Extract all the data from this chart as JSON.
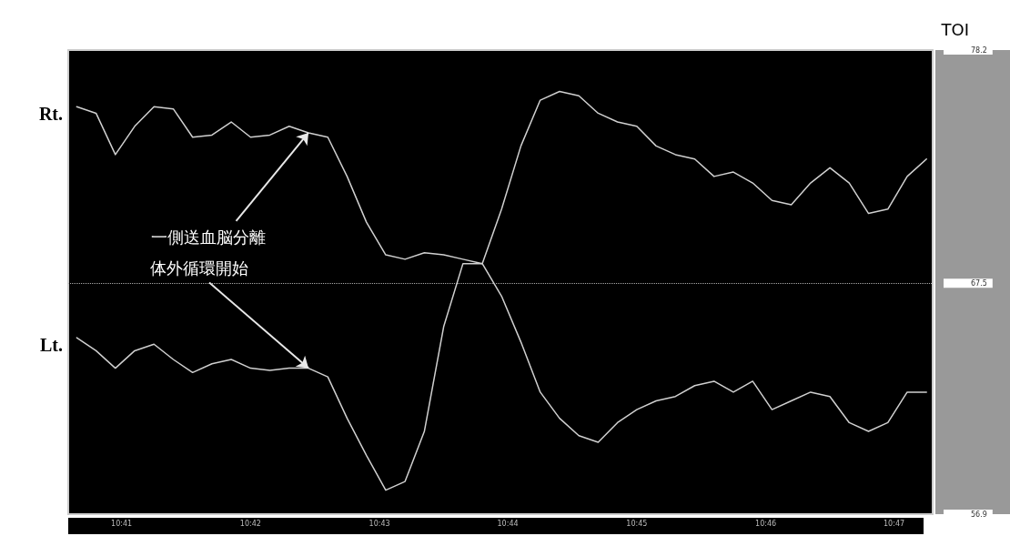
{
  "chart_data": {
    "type": "line",
    "title": "TOI",
    "x": [
      10.6775,
      10.68,
      10.6825,
      10.685,
      10.6875,
      10.69,
      10.6925,
      10.695,
      10.6975,
      10.7,
      10.7025,
      10.705,
      10.7075,
      10.71,
      10.7125,
      10.715,
      10.7175,
      10.72,
      10.7225,
      10.725,
      10.7275,
      10.73,
      10.7325,
      10.735,
      10.7375,
      10.74,
      10.7425,
      10.745,
      10.7475,
      10.75,
      10.7525,
      10.755,
      10.7575,
      10.76,
      10.7625,
      10.765,
      10.7675,
      10.77,
      10.7725,
      10.775,
      10.7775,
      10.78,
      10.7825,
      10.785,
      10.7875
    ],
    "series": [
      {
        "name": "Rt.",
        "color": "#d0d0d0",
        "values": [
          75.6,
          75.3,
          73.4,
          74.7,
          75.6,
          75.5,
          74.2,
          74.3,
          74.9,
          74.2,
          74.3,
          74.7,
          74.4,
          74.2,
          72.4,
          70.3,
          68.8,
          68.6,
          68.9,
          68.8,
          68.6,
          68.4,
          70.9,
          73.8,
          75.9,
          76.3,
          76.1,
          75.3,
          74.9,
          74.7,
          73.8,
          73.4,
          73.2,
          72.4,
          72.6,
          72.1,
          71.3,
          71.1,
          72.1,
          72.8,
          72.1,
          70.7,
          70.9,
          72.4,
          73.2
        ]
      },
      {
        "name": "Lt.",
        "color": "#d0d0d0",
        "values": [
          65.0,
          64.4,
          63.6,
          64.4,
          64.7,
          64.0,
          63.4,
          63.8,
          64.0,
          63.6,
          63.5,
          63.6,
          63.6,
          63.2,
          61.3,
          59.6,
          58.0,
          58.4,
          60.7,
          65.5,
          68.4,
          68.4,
          66.9,
          64.8,
          62.5,
          61.3,
          60.5,
          60.2,
          61.1,
          61.7,
          62.1,
          62.3,
          62.8,
          63.0,
          62.5,
          63.0,
          61.7,
          62.1,
          62.5,
          62.3,
          61.1,
          60.7,
          61.1,
          62.5,
          62.5
        ]
      }
    ],
    "xlim": [
      10.6764,
      10.7883
    ],
    "xticks": [
      {
        "value": 10.6833,
        "label": "10:41"
      },
      {
        "value": 10.7,
        "label": "10:42"
      },
      {
        "value": 10.7167,
        "label": "10:43"
      },
      {
        "value": 10.7333,
        "label": "10:44"
      },
      {
        "value": 10.75,
        "label": "10:45"
      },
      {
        "value": 10.7667,
        "label": "10:46"
      },
      {
        "value": 10.7833,
        "label": "10:47"
      }
    ],
    "ylim": [
      56.9,
      78.2
    ],
    "yticks": [
      56.9,
      67.5,
      78.2
    ],
    "ref_lines": [
      {
        "axis": "y",
        "value": 67.5,
        "color": "#aaaaaa",
        "line_style": "dotted"
      }
    ],
    "annotations": [
      {
        "text": "一側送血脳分離",
        "x": 10.7075,
        "y": 74.4
      },
      {
        "text": "体外循環開始",
        "x": 10.7075,
        "y": 63.6
      }
    ],
    "grid": false,
    "legend": false,
    "marker": "none",
    "line_style": "solid"
  }
}
